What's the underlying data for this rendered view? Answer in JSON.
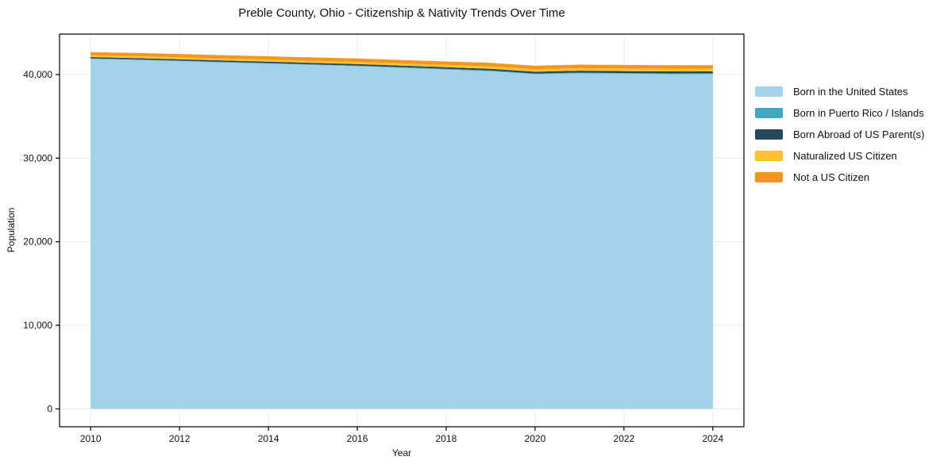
{
  "chart_data": {
    "type": "area",
    "stacked": true,
    "title": "Preble County, Ohio - Citizenship & Nativity Trends Over Time",
    "xlabel": "Year",
    "ylabel": "Population",
    "grid": true,
    "legend_position": "right-outside",
    "x": [
      2010,
      2011,
      2012,
      2013,
      2014,
      2015,
      2016,
      2017,
      2018,
      2019,
      2020,
      2021,
      2022,
      2023,
      2024
    ],
    "series": [
      {
        "name": "Born in the United States",
        "color": "#a2d2e8",
        "values": [
          41870,
          41750,
          41600,
          41450,
          41300,
          41150,
          41000,
          40800,
          40600,
          40400,
          40040,
          40150,
          40100,
          40050,
          40060
        ]
      },
      {
        "name": "Born in Puerto Rico / Islands",
        "color": "#45a6c4",
        "values": [
          60,
          60,
          65,
          65,
          70,
          70,
          70,
          75,
          75,
          80,
          80,
          80,
          80,
          85,
          85
        ]
      },
      {
        "name": "Born Abroad of US Parent(s)",
        "color": "#27495c",
        "values": [
          150,
          160,
          160,
          170,
          170,
          180,
          180,
          190,
          200,
          210,
          220,
          230,
          230,
          240,
          250
        ]
      },
      {
        "name": "Naturalized US Citizen",
        "color": "#fdc12f",
        "values": [
          220,
          230,
          240,
          240,
          250,
          250,
          260,
          270,
          280,
          290,
          300,
          300,
          310,
          310,
          310
        ]
      },
      {
        "name": "Not a US Citizen",
        "color": "#f7941e",
        "values": [
          380,
          380,
          390,
          390,
          390,
          400,
          400,
          400,
          410,
          410,
          410,
          420,
          420,
          420,
          400
        ]
      }
    ],
    "x_ticks": [
      2010,
      2012,
      2014,
      2016,
      2018,
      2020,
      2022,
      2024
    ],
    "y_ticks": [
      {
        "value": 0,
        "label": "0"
      },
      {
        "value": 10000,
        "label": "10,000"
      },
      {
        "value": 20000,
        "label": "20,000"
      },
      {
        "value": 30000,
        "label": "30,000"
      },
      {
        "value": 40000,
        "label": "40,000"
      }
    ],
    "xlim": [
      2009.3,
      2024.7
    ],
    "ylim": [
      -2135,
      44835
    ],
    "grid_color": "#ebebeb",
    "spine_color": "#000000",
    "background_color": "#ffffff"
  }
}
